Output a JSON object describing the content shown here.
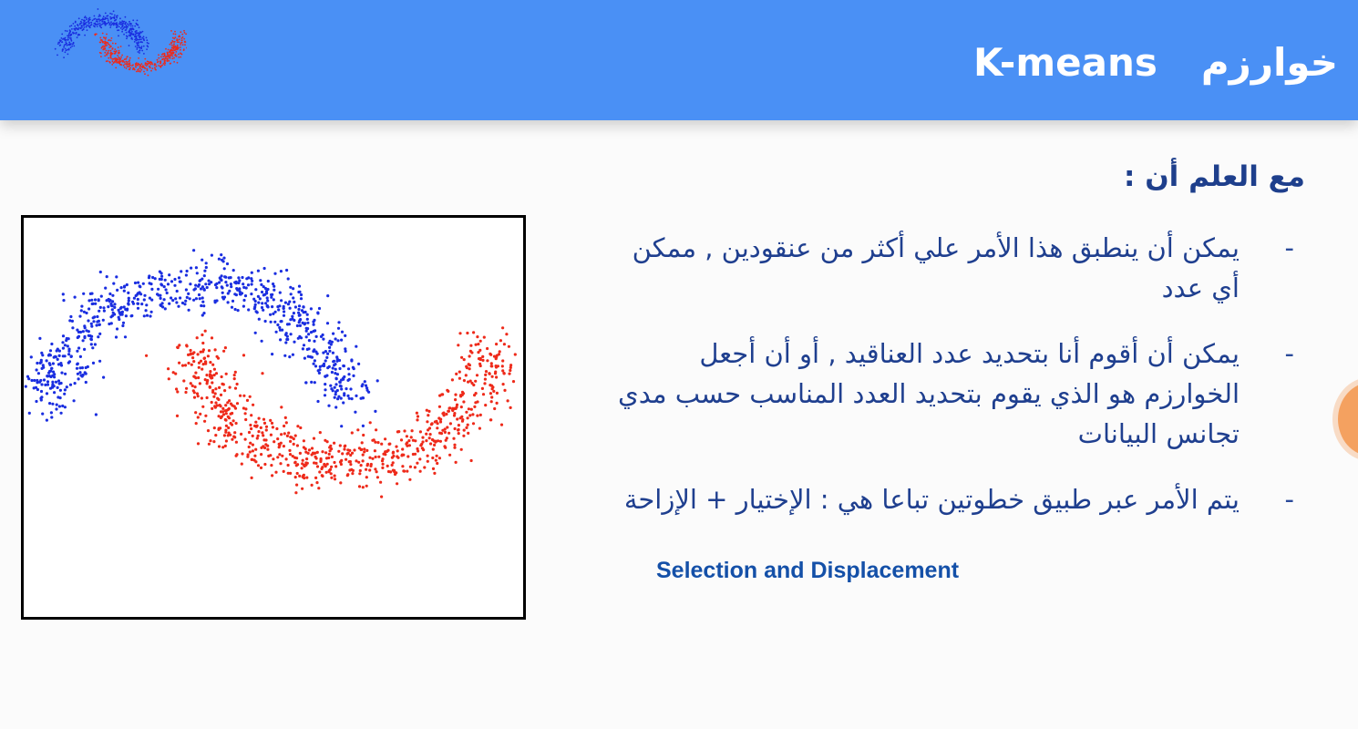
{
  "header": {
    "title_ar": "خوارزم",
    "title_en": "K-means"
  },
  "content": {
    "note_heading": "مع العلم أن  :",
    "bullets": [
      {
        "dash": "-",
        "text": "يمكن أن ينطبق هذا الأمر علي أكثر من عنقودين , ممكن أي عدد"
      },
      {
        "dash": "-",
        "text": "يمكن أن أقوم أنا بتحديد عدد العناقيد , أو أن أجعل الخوارزم هو الذي يقوم بتحديد العدد المناسب حسب مدي تجانس البيانات"
      },
      {
        "dash": "-",
        "text": "يتم الأمر عبر طبيق خطوتين تباعا هي : الإختيار + الإزاحة"
      }
    ],
    "sub_en": "Selection and Displacement"
  },
  "chart_data": {
    "type": "scatter",
    "title": "",
    "xlabel": "",
    "ylabel": "",
    "grid": false,
    "series": [
      {
        "color": "#1a2ee0",
        "shape": "upper-moon"
      },
      {
        "color": "#ee2a1a",
        "shape": "lower-moon"
      }
    ]
  },
  "colors": {
    "header_bg": "#4a90f5",
    "text_primary": "#1f3f8f",
    "blue_cluster": "#1a2ee0",
    "red_cluster": "#ee2a1a"
  }
}
